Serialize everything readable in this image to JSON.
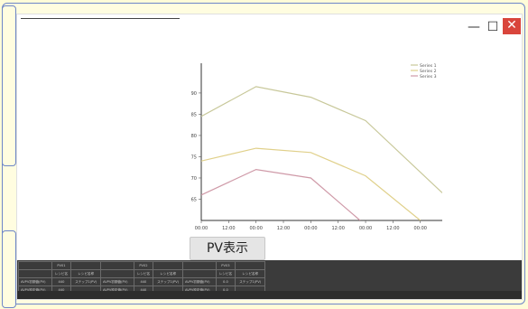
{
  "window": {
    "controls": {
      "minimize": "—",
      "maximize": "☐",
      "close": "✕"
    }
  },
  "chart_data": {
    "type": "line",
    "x": [
      "00:00",
      "12:00",
      "00:00",
      "12:00",
      "00:00",
      "12:00",
      "00:00",
      "12:00",
      "00:00"
    ],
    "x_positions": [
      0,
      1,
      2,
      3,
      4,
      5,
      6,
      7,
      8
    ],
    "yticks": [
      65,
      70,
      75,
      80,
      85,
      90
    ],
    "ylim": [
      60,
      97
    ],
    "xlim": [
      0,
      8.8
    ],
    "series": [
      {
        "name": "Series 1",
        "color": "#c8c89a",
        "points": [
          [
            0,
            84.5
          ],
          [
            2,
            91.5
          ],
          [
            4,
            89
          ],
          [
            6,
            83.5
          ],
          [
            8.8,
            66.5
          ]
        ]
      },
      {
        "name": "Series 2",
        "color": "#e0d08a",
        "points": [
          [
            0,
            74
          ],
          [
            2,
            77
          ],
          [
            4,
            76
          ],
          [
            6,
            70.5
          ],
          [
            8,
            60
          ]
        ]
      },
      {
        "name": "Series 3",
        "color": "#cf9aa8",
        "points": [
          [
            0,
            66
          ],
          [
            2,
            72
          ],
          [
            4,
            70
          ],
          [
            5.8,
            60
          ]
        ]
      }
    ],
    "legend_position": "top-right"
  },
  "actions": {
    "pv_button": "PV表示"
  },
  "table": {
    "rows": [
      [
        "",
        "PV01",
        "",
        "",
        "PV02",
        "",
        "",
        "PV03",
        ""
      ],
      [
        "",
        "レシピ名",
        "レシピ名称",
        "",
        "レシピ名",
        "レシピ名称",
        "",
        "レシピ名",
        "レシピ名称"
      ],
      [
        "AVPV初期値(PV)",
        "440",
        "ステップ1(PV)",
        "AVPV初期値(PV)",
        "440",
        "ステップ1(PV)",
        "AVPV初期値(PV)",
        "0.0",
        "ステップ1(PV)"
      ],
      [
        "AVPV設定値(PV)",
        "440",
        "",
        "AVPV設定値(PV)",
        "440",
        "",
        "AVPV設定値(PV)",
        "0.0",
        ""
      ]
    ]
  }
}
